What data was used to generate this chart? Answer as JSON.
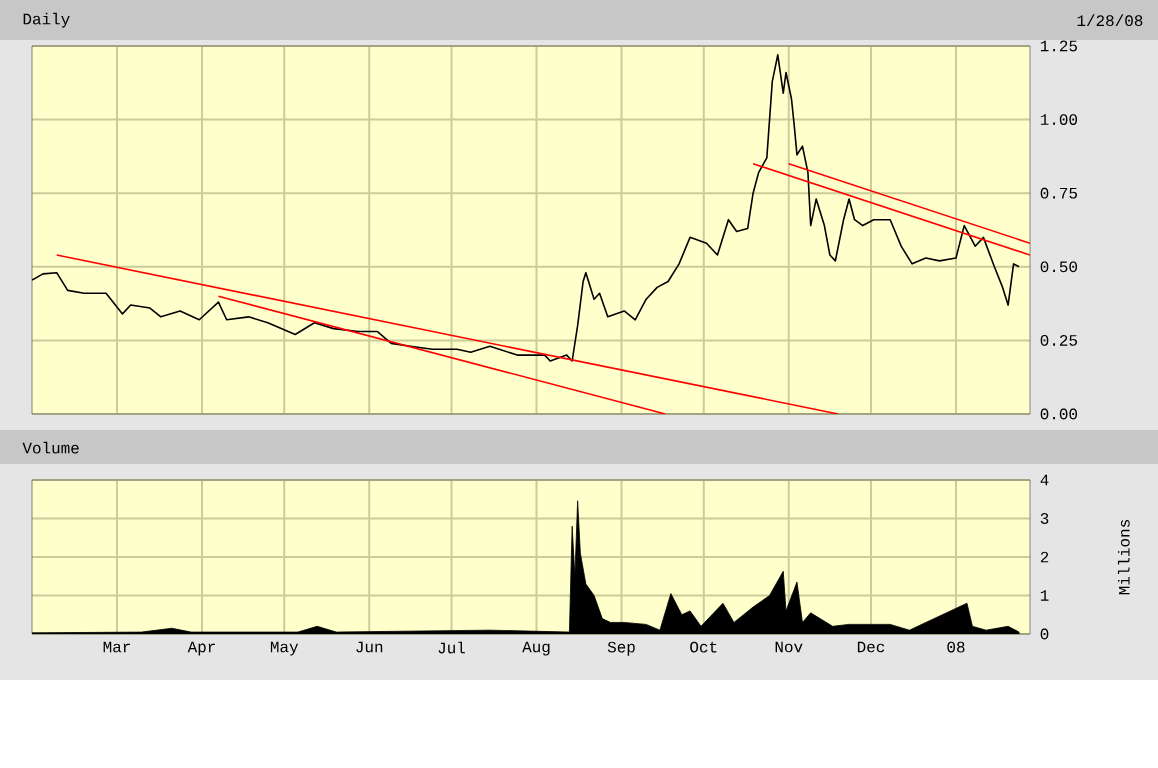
{
  "chart_data": [
    {
      "type": "line",
      "title": "Daily",
      "annotations": [
        "1/28/08"
      ],
      "xlim": [
        "2007-01-29",
        "2008-01-28"
      ],
      "ylim": [
        0,
        1.25
      ],
      "xticks": [
        {
          "value": "2007-03-01",
          "label": null
        },
        {
          "value": "2007-04-01",
          "label": null
        },
        {
          "value": "2007-05-01",
          "label": null
        },
        {
          "value": "2007-06-01",
          "label": null
        },
        {
          "value": "2007-07-01",
          "label": null
        },
        {
          "value": "2007-08-01",
          "label": null
        },
        {
          "value": "2007-09-01",
          "label": null
        },
        {
          "value": "2007-10-01",
          "label": null
        },
        {
          "value": "2007-11-01",
          "label": null
        },
        {
          "value": "2007-12-01",
          "label": null
        },
        {
          "value": "2008-01-01",
          "label": null
        }
      ],
      "yticks": [
        {
          "value": 0,
          "label": "0.00"
        },
        {
          "value": 0.25,
          "label": "0.25"
        },
        {
          "value": 0.5,
          "label": "0.50"
        },
        {
          "value": 0.75,
          "label": "0.75"
        },
        {
          "value": 1,
          "label": "1.00"
        },
        {
          "value": 1.25,
          "label": "1.25"
        }
      ],
      "grid": true,
      "tick_labels": "y",
      "series": [
        {
          "color": "#000000",
          "x": [
            "2007-01-29",
            "2007-02-02",
            "2007-02-07",
            "2007-02-11",
            "2007-02-17",
            "2007-02-25",
            "2007-03-03",
            "2007-03-06",
            "2007-03-13",
            "2007-03-17",
            "2007-03-24",
            "2007-03-31",
            "2007-04-07",
            "2007-04-10",
            "2007-04-18",
            "2007-04-25",
            "2007-05-05",
            "2007-05-12",
            "2007-05-19",
            "2007-05-28",
            "2007-06-04",
            "2007-06-09",
            "2007-06-16",
            "2007-06-24",
            "2007-07-03",
            "2007-07-08",
            "2007-07-15",
            "2007-07-25",
            "2007-08-04",
            "2007-08-06",
            "2007-08-12",
            "2007-08-14",
            "2007-08-16",
            "2007-08-18",
            "2007-08-19",
            "2007-08-22",
            "2007-08-24",
            "2007-08-27",
            "2007-09-02",
            "2007-09-06",
            "2007-09-10",
            "2007-09-14",
            "2007-09-18",
            "2007-09-22",
            "2007-09-26",
            "2007-10-02",
            "2007-10-06",
            "2007-10-10",
            "2007-10-13",
            "2007-10-17",
            "2007-10-19",
            "2007-10-21",
            "2007-10-24",
            "2007-10-26",
            "2007-10-28",
            "2007-10-30",
            "2007-10-31",
            "2007-11-02",
            "2007-11-03",
            "2007-11-04",
            "2007-11-06",
            "2007-11-08",
            "2007-11-09",
            "2007-11-11",
            "2007-11-14",
            "2007-11-16",
            "2007-11-18",
            "2007-11-21",
            "2007-11-23",
            "2007-11-25",
            "2007-11-28",
            "2007-12-02",
            "2007-12-08",
            "2007-12-12",
            "2007-12-16",
            "2007-12-21",
            "2007-12-26",
            "2008-01-01",
            "2008-01-04",
            "2008-01-08",
            "2008-01-11",
            "2008-01-15",
            "2008-01-18",
            "2008-01-20",
            "2008-01-22",
            "2008-01-24"
          ],
          "values": [
            0.455,
            0.476,
            0.48,
            0.42,
            0.41,
            0.41,
            0.34,
            0.37,
            0.36,
            0.33,
            0.35,
            0.32,
            0.38,
            0.32,
            0.33,
            0.31,
            0.27,
            0.31,
            0.29,
            0.28,
            0.28,
            0.24,
            0.23,
            0.22,
            0.22,
            0.21,
            0.23,
            0.2,
            0.2,
            0.18,
            0.2,
            0.18,
            0.3,
            0.45,
            0.48,
            0.39,
            0.41,
            0.33,
            0.35,
            0.32,
            0.39,
            0.43,
            0.45,
            0.51,
            0.6,
            0.58,
            0.54,
            0.66,
            0.62,
            0.63,
            0.75,
            0.82,
            0.87,
            1.13,
            1.22,
            1.09,
            1.16,
            1.07,
            0.98,
            0.88,
            0.91,
            0.82,
            0.64,
            0.73,
            0.64,
            0.54,
            0.52,
            0.66,
            0.73,
            0.66,
            0.64,
            0.66,
            0.66,
            0.57,
            0.51,
            0.53,
            0.52,
            0.53,
            0.64,
            0.57,
            0.6,
            0.5,
            0.43,
            0.37,
            0.51,
            0.5
          ]
        },
        {
          "color": "#ff0000",
          "x": [
            "2007-02-07",
            "2007-11-19"
          ],
          "values": [
            0.54,
            0
          ]
        },
        {
          "color": "#ff0000",
          "x": [
            "2007-04-07",
            "2007-09-17"
          ],
          "values": [
            0.4,
            0
          ]
        },
        {
          "color": "#ff0000",
          "x": [
            "2007-10-19",
            "2008-01-28"
          ],
          "values": [
            0.85,
            0.54
          ]
        },
        {
          "color": "#ff0000",
          "x": [
            "2007-11-01",
            "2008-01-28"
          ],
          "values": [
            0.85,
            0.58
          ]
        }
      ]
    },
    {
      "type": "area",
      "title": "Volume",
      "ylabel": "Millions",
      "xlim": [
        "2007-01-29",
        "2008-01-28"
      ],
      "ylim": [
        0,
        4
      ],
      "xticks": [
        {
          "value": "2007-03-01",
          "label": "Mar"
        },
        {
          "value": "2007-04-01",
          "label": "Apr"
        },
        {
          "value": "2007-05-01",
          "label": "May"
        },
        {
          "value": "2007-06-01",
          "label": "Jun"
        },
        {
          "value": "2007-07-01",
          "label": "Jul"
        },
        {
          "value": "2007-08-01",
          "label": "Aug"
        },
        {
          "value": "2007-09-01",
          "label": "Sep"
        },
        {
          "value": "2007-10-01",
          "label": "Oct"
        },
        {
          "value": "2007-11-01",
          "label": "Nov"
        },
        {
          "value": "2007-12-01",
          "label": "Dec"
        },
        {
          "value": "2008-01-01",
          "label": "08"
        }
      ],
      "yticks": [
        0,
        1,
        2,
        3,
        4
      ],
      "grid": true,
      "series": [
        {
          "color": "#000000",
          "x": [
            "2007-01-29",
            "2007-03-10",
            "2007-03-21",
            "2007-03-28",
            "2007-05-06",
            "2007-05-13",
            "2007-05-20",
            "2007-07-15",
            "2007-08-13",
            "2007-08-14",
            "2007-08-15",
            "2007-08-16",
            "2007-08-17",
            "2007-08-19",
            "2007-08-22",
            "2007-08-25",
            "2007-08-28",
            "2007-09-02",
            "2007-09-10",
            "2007-09-15",
            "2007-09-19",
            "2007-09-23",
            "2007-09-26",
            "2007-09-30",
            "2007-10-08",
            "2007-10-12",
            "2007-10-19",
            "2007-10-25",
            "2007-10-30",
            "2007-10-31",
            "2007-11-04",
            "2007-11-06",
            "2007-11-09",
            "2007-11-17",
            "2007-11-23",
            "2007-12-08",
            "2007-12-15",
            "2008-01-05",
            "2008-01-07",
            "2008-01-12",
            "2008-01-20",
            "2008-01-24"
          ],
          "values": [
            0.03,
            0.05,
            0.15,
            0.05,
            0.05,
            0.2,
            0.05,
            0.1,
            0.05,
            2.8,
            1.5,
            3.46,
            2.1,
            1.3,
            1.0,
            0.4,
            0.3,
            0.3,
            0.25,
            0.1,
            1.05,
            0.5,
            0.6,
            0.2,
            0.8,
            0.3,
            0.7,
            1.0,
            1.63,
            0.6,
            1.35,
            0.3,
            0.55,
            0.2,
            0.25,
            0.25,
            0.1,
            0.8,
            0.2,
            0.1,
            0.2,
            0.05
          ]
        }
      ]
    }
  ]
}
